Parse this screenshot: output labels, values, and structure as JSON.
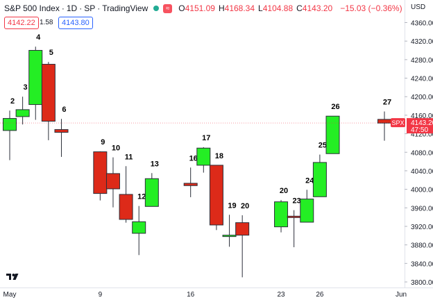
{
  "legend": {
    "symbol_name": "S&P 500 Index",
    "interval": "1D",
    "exchange": "SP",
    "source": "TradingView",
    "open_label": "O",
    "open": "4151.09",
    "high_label": "H",
    "high": "4168.34",
    "low_label": "L",
    "low": "4104.88",
    "close_label": "C",
    "close": "4143.20",
    "change": "−15.03 (−0.36%)",
    "wave_icon": "≈"
  },
  "quote": {
    "bid": "4142.22",
    "spread": "1.58",
    "ask": "4143.80"
  },
  "price_scale": {
    "currency": "USD",
    "last_symbol": "SPX",
    "last_price": "4143.20",
    "countdown": "47:50"
  },
  "colors": {
    "up": "#24ee24",
    "down": "#dd2a19",
    "axis_text": "#131722",
    "last_price_bg": "#f23645"
  },
  "chart_data": {
    "type": "candlestick",
    "title": "S&P 500 Index",
    "ylim": [
      3780,
      4400
    ],
    "yticks": [
      3800,
      3840,
      3880,
      3920,
      3960,
      4000,
      4040,
      4080,
      4120,
      4160,
      4200,
      4240,
      4280,
      4320,
      4360
    ],
    "x_tick_labels": [
      {
        "day": 0,
        "label": "May"
      },
      {
        "day": 9,
        "label": "9"
      },
      {
        "day": 16,
        "label": "16"
      },
      {
        "day": 23,
        "label": "23"
      },
      {
        "day": 26,
        "label": "26"
      },
      {
        "day": 30,
        "label": "Jun"
      }
    ],
    "candles": [
      {
        "day": 2,
        "label": "2",
        "open": 4127,
        "high": 4170,
        "low": 4063,
        "close": 4153
      },
      {
        "day": 3,
        "label": "3",
        "open": 4157,
        "high": 4200,
        "low": 4140,
        "close": 4172
      },
      {
        "day": 4,
        "label": "4",
        "open": 4183,
        "high": 4308,
        "low": 4150,
        "close": 4300
      },
      {
        "day": 5,
        "label": "5",
        "open": 4270,
        "high": 4275,
        "low": 4106,
        "close": 4147
      },
      {
        "day": 6,
        "label": "6",
        "open": 4129,
        "high": 4152,
        "low": 4070,
        "close": 4123
      },
      {
        "day": 9,
        "label": "9",
        "open": 4081,
        "high": 4082,
        "low": 3976,
        "close": 3991
      },
      {
        "day": 10,
        "label": "10",
        "open": 4034,
        "high": 4069,
        "low": 3961,
        "close": 4001
      },
      {
        "day": 11,
        "label": "11",
        "open": 3989,
        "high": 4050,
        "low": 3928,
        "close": 3935
      },
      {
        "day": 12,
        "label": "12",
        "open": 3905,
        "high": 3964,
        "low": 3858,
        "close": 3930
      },
      {
        "day": 13,
        "label": "13",
        "open": 3963,
        "high": 4035,
        "low": 3963,
        "close": 4023
      },
      {
        "day": 16,
        "label": "16",
        "open": 4013,
        "high": 4047,
        "low": 3983,
        "close": 4008
      },
      {
        "day": 17,
        "label": "17",
        "open": 4052,
        "high": 4091,
        "low": 4036,
        "close": 4089
      },
      {
        "day": 18,
        "label": "18",
        "open": 4052,
        "high": 4052,
        "low": 3912,
        "close": 3923
      },
      {
        "day": 19,
        "label": "19",
        "open": 3898,
        "high": 3945,
        "low": 3876,
        "close": 3901
      },
      {
        "day": 20,
        "label": "20",
        "open": 3928,
        "high": 3944,
        "low": 3810,
        "close": 3901
      },
      {
        "day": 23,
        "label": "20",
        "open": 3919,
        "high": 3977,
        "low": 3907,
        "close": 3973
      },
      {
        "day": 24,
        "label": "23",
        "open": 3942,
        "high": 3955,
        "low": 3875,
        "close": 3941
      },
      {
        "day": 25,
        "label": "24",
        "open": 3929,
        "high": 3999,
        "low": 3929,
        "close": 3979
      },
      {
        "day": 26,
        "label": "25",
        "open": 3984,
        "high": 4075,
        "low": 3984,
        "close": 4058
      },
      {
        "day": 27,
        "label": "26",
        "open": 4077,
        "high": 4158,
        "low": 4077,
        "close": 4158
      },
      {
        "day": 31,
        "label": "27",
        "open": 4151,
        "high": 4168,
        "low": 4105,
        "close": 4143
      }
    ]
  }
}
